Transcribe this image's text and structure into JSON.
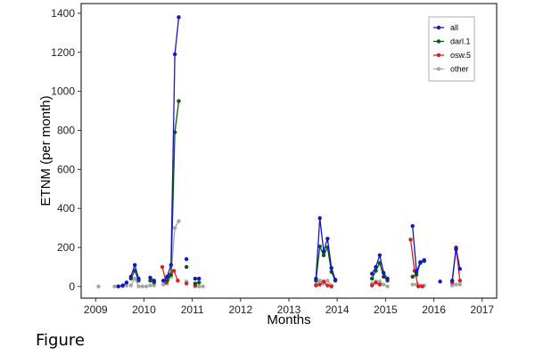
{
  "figure_caption": "Figure",
  "chart_data": {
    "type": "line",
    "title": "",
    "xlabel": "Months",
    "ylabel": "ETNM (per month)",
    "xlim": [
      2008.7,
      2017.3
    ],
    "ylim": [
      -60,
      1450
    ],
    "xticks": [
      2009,
      2010,
      2011,
      2012,
      2013,
      2014,
      2015,
      2016,
      2017
    ],
    "xtick_labels": [
      "2009",
      "2010",
      "2011",
      "2012",
      "2013",
      "2014",
      "2015",
      "2016",
      "2017"
    ],
    "yticks": [
      0,
      200,
      400,
      600,
      800,
      1000,
      1200,
      1400
    ],
    "ytick_labels": [
      "0",
      "200",
      "400",
      "600",
      "800",
      "1000",
      "1200",
      "1400"
    ],
    "grid": false,
    "legend_position": "top-right",
    "series": [
      {
        "name": "all",
        "color": "#1515c8",
        "segments": [
          [
            [
              2009.47,
              0
            ],
            [
              2009.56,
              5
            ],
            [
              2009.64,
              20
            ]
          ],
          [
            [
              2009.73,
              50
            ],
            [
              2009.81,
              110
            ],
            [
              2009.89,
              40
            ]
          ],
          [
            [
              2010.13,
              45
            ],
            [
              2010.21,
              30
            ]
          ],
          [
            [
              2010.4,
              30
            ],
            [
              2010.48,
              50
            ],
            [
              2010.56,
              110
            ],
            [
              2010.64,
              1190
            ],
            [
              2010.72,
              1380
            ]
          ],
          [
            [
              2010.88,
              140
            ]
          ],
          [
            [
              2011.06,
              40
            ],
            [
              2011.14,
              40
            ]
          ],
          [
            [
              2013.56,
              40
            ],
            [
              2013.64,
              350
            ],
            [
              2013.72,
              180
            ],
            [
              2013.8,
              245
            ],
            [
              2013.88,
              95
            ],
            [
              2013.96,
              35
            ]
          ],
          [
            [
              2014.72,
              65
            ],
            [
              2014.8,
              100
            ],
            [
              2014.88,
              160
            ],
            [
              2014.96,
              70
            ],
            [
              2015.04,
              40
            ]
          ],
          [
            [
              2015.56,
              310
            ],
            [
              2015.64,
              75
            ],
            [
              2015.72,
              125
            ],
            [
              2015.8,
              135
            ]
          ],
          [
            [
              2016.13,
              25
            ]
          ],
          [
            [
              2016.38,
              30
            ],
            [
              2016.46,
              195
            ],
            [
              2016.54,
              90
            ]
          ]
        ]
      },
      {
        "name": "darl.1",
        "color": "#0b5a0b",
        "segments": [
          [
            [
              2009.73,
              40
            ],
            [
              2009.81,
              80
            ],
            [
              2009.89,
              30
            ]
          ],
          [
            [
              2010.13,
              30
            ],
            [
              2010.21,
              20
            ]
          ],
          [
            [
              2010.48,
              30
            ],
            [
              2010.56,
              60
            ],
            [
              2010.64,
              790
            ],
            [
              2010.72,
              950
            ]
          ],
          [
            [
              2010.88,
              100
            ]
          ],
          [
            [
              2011.06,
              15
            ],
            [
              2011.14,
              20
            ]
          ],
          [
            [
              2013.56,
              30
            ],
            [
              2013.64,
              205
            ],
            [
              2013.72,
              160
            ],
            [
              2013.8,
              200
            ],
            [
              2013.88,
              75
            ],
            [
              2013.96,
              30
            ]
          ],
          [
            [
              2014.72,
              40
            ],
            [
              2014.8,
              80
            ],
            [
              2014.88,
              120
            ],
            [
              2014.96,
              50
            ],
            [
              2015.04,
              30
            ]
          ],
          [
            [
              2015.56,
              50
            ],
            [
              2015.64,
              60
            ],
            [
              2015.72,
              120
            ],
            [
              2015.8,
              130
            ]
          ],
          [
            [
              2016.46,
              190
            ]
          ]
        ]
      },
      {
        "name": "osw.5",
        "color": "#d81e1e",
        "segments": [
          [
            [
              2010.38,
              100
            ],
            [
              2010.46,
              20
            ],
            [
              2010.54,
              60
            ],
            [
              2010.62,
              80
            ],
            [
              2010.7,
              30
            ]
          ],
          [
            [
              2010.88,
              15
            ]
          ],
          [
            [
              2011.06,
              5
            ]
          ],
          [
            [
              2013.56,
              5
            ],
            [
              2013.64,
              10
            ],
            [
              2013.72,
              25
            ],
            [
              2013.8,
              5
            ],
            [
              2013.88,
              0
            ]
          ],
          [
            [
              2014.72,
              5
            ],
            [
              2014.8,
              20
            ],
            [
              2014.88,
              10
            ]
          ],
          [
            [
              2015.52,
              240
            ],
            [
              2015.6,
              80
            ],
            [
              2015.68,
              0
            ],
            [
              2015.76,
              0
            ]
          ],
          [
            [
              2016.38,
              20
            ],
            [
              2016.46,
              200
            ],
            [
              2016.54,
              30
            ]
          ]
        ]
      },
      {
        "name": "other",
        "color": "#a6a6a6",
        "segments": [
          [
            [
              2009.06,
              0
            ]
          ],
          [
            [
              2009.39,
              0
            ],
            [
              2009.47,
              0
            ],
            [
              2009.56,
              0
            ],
            [
              2009.64,
              5
            ]
          ],
          [
            [
              2009.73,
              5
            ],
            [
              2009.81,
              40
            ],
            [
              2009.89,
              0
            ],
            [
              2009.97,
              0
            ],
            [
              2010.05,
              0
            ]
          ],
          [
            [
              2010.13,
              5
            ],
            [
              2010.21,
              5
            ]
          ],
          [
            [
              2010.4,
              10
            ],
            [
              2010.48,
              15
            ],
            [
              2010.56,
              50
            ],
            [
              2010.64,
              300
            ],
            [
              2010.72,
              335
            ]
          ],
          [
            [
              2010.88,
              25
            ]
          ],
          [
            [
              2011.06,
              0
            ],
            [
              2011.14,
              0
            ],
            [
              2011.22,
              0
            ]
          ],
          [
            [
              2013.56,
              10
            ],
            [
              2013.64,
              30
            ],
            [
              2013.72,
              15
            ],
            [
              2013.8,
              30
            ],
            [
              2013.88,
              5
            ]
          ],
          [
            [
              2014.72,
              15
            ],
            [
              2014.8,
              25
            ],
            [
              2014.88,
              25
            ],
            [
              2014.96,
              10
            ],
            [
              2015.04,
              0
            ]
          ],
          [
            [
              2015.56,
              10
            ],
            [
              2015.64,
              10
            ],
            [
              2015.72,
              5
            ],
            [
              2015.8,
              5
            ]
          ],
          [
            [
              2016.38,
              5
            ],
            [
              2016.46,
              10
            ],
            [
              2016.54,
              10
            ]
          ]
        ]
      }
    ]
  }
}
